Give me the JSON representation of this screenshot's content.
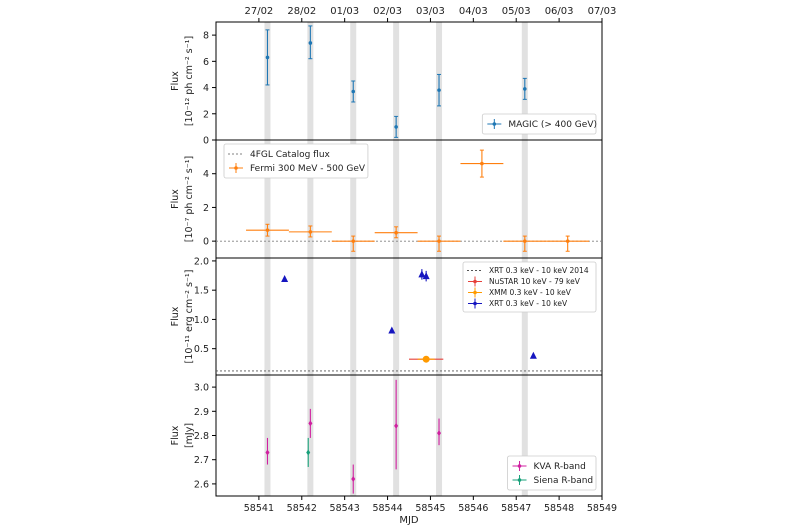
{
  "chart_data": {
    "type": "scatter",
    "xlabel": "MJD",
    "xlim": [
      58540,
      58549
    ],
    "x_ticks": [
      "58541",
      "58542",
      "58543",
      "58544",
      "58545",
      "58546",
      "58547",
      "58548",
      "58549"
    ],
    "top_axis_ticks": [
      "27/02",
      "28/02",
      "01/03",
      "02/03",
      "03/03",
      "04/03",
      "05/03",
      "06/03",
      "07/03"
    ],
    "observation_bands_x": [
      58541.2,
      58542.2,
      58543.2,
      58544.2,
      58545.2,
      58547.2
    ],
    "colors": {
      "magic": "#1f77b4",
      "fermi": "#ff7f0e",
      "fermi_catalog": "#808080",
      "xrt2014": "#555555",
      "nustar": "#e6403a",
      "xmm": "#ff9a00",
      "xrt": "#1616c0",
      "kva": "#d020a0",
      "siena": "#17a07a",
      "band": "#dcdcdc"
    },
    "panels": [
      {
        "id": "magic",
        "ylabel_line1": "Flux",
        "ylabel_line2": "[10⁻¹² ph cm⁻² s⁻¹]",
        "ylim": [
          0,
          9
        ],
        "y_ticks": [
          "0",
          "2",
          "4",
          "6",
          "8"
        ],
        "legend_position": "lower-right",
        "series": [
          {
            "name": "MAGIC (> 400 GeV)",
            "marker": "errorbar",
            "color_key": "magic",
            "points": [
              {
                "x": 58541.2,
                "y": 6.3,
                "ylo": 4.2,
                "yhi": 8.4
              },
              {
                "x": 58542.2,
                "y": 7.4,
                "ylo": 6.2,
                "yhi": 8.7
              },
              {
                "x": 58543.2,
                "y": 3.7,
                "ylo": 2.9,
                "yhi": 4.5
              },
              {
                "x": 58544.2,
                "y": 1.0,
                "ylo": 0.2,
                "yhi": 1.8
              },
              {
                "x": 58545.2,
                "y": 3.8,
                "ylo": 2.6,
                "yhi": 5.0
              },
              {
                "x": 58547.2,
                "y": 3.9,
                "ylo": 3.1,
                "yhi": 4.7
              }
            ]
          }
        ]
      },
      {
        "id": "fermi",
        "ylabel_line1": "Flux",
        "ylabel_line2": "[10⁻⁷ ph cm⁻² s⁻¹]",
        "ylim": [
          -1,
          6
        ],
        "y_ticks": [
          "0",
          "2",
          "4"
        ],
        "legend_position": "upper-left",
        "reference_line": {
          "name": "4FGL Catalog flux",
          "y": 0,
          "color_key": "fermi_catalog"
        },
        "series": [
          {
            "name": "Fermi 300 MeV - 500 GeV",
            "marker": "errorbar-x",
            "color_key": "fermi",
            "points": [
              {
                "x": 58541.2,
                "y": 0.65,
                "ylo": 0.3,
                "yhi": 1.0,
                "xlo": 58540.7,
                "xhi": 58541.7
              },
              {
                "x": 58542.2,
                "y": 0.55,
                "ylo": 0.25,
                "yhi": 0.9,
                "xlo": 58541.7,
                "xhi": 58542.7
              },
              {
                "x": 58543.2,
                "y": 0.0,
                "ylo": -0.6,
                "yhi": 0.3,
                "xlo": 58542.7,
                "xhi": 58543.7
              },
              {
                "x": 58544.2,
                "y": 0.5,
                "ylo": 0.2,
                "yhi": 0.85,
                "xlo": 58543.7,
                "xhi": 58544.7
              },
              {
                "x": 58545.2,
                "y": 0.0,
                "ylo": -0.6,
                "yhi": 0.3,
                "xlo": 58544.7,
                "xhi": 58545.7
              },
              {
                "x": 58546.2,
                "y": 4.6,
                "ylo": 3.8,
                "yhi": 5.4,
                "xlo": 58545.7,
                "xhi": 58546.7
              },
              {
                "x": 58547.2,
                "y": 0.0,
                "ylo": -0.6,
                "yhi": 0.3,
                "xlo": 58546.7,
                "xhi": 58547.7
              },
              {
                "x": 58548.2,
                "y": 0.0,
                "ylo": -0.6,
                "yhi": 0.3,
                "xlo": 58547.7,
                "xhi": 58548.7
              }
            ]
          }
        ]
      },
      {
        "id": "xray",
        "ylabel_line1": "Flux",
        "ylabel_line2": "[10⁻¹¹ erg cm⁻² s⁻¹]",
        "ylim": [
          0.05,
          2.05
        ],
        "y_ticks": [
          "0.5",
          "1.0",
          "1.5",
          "2.0"
        ],
        "legend_position": "upper-right",
        "reference_line": {
          "name": "XRT 0.3 keV - 10 keV 2014",
          "y": 0.12,
          "color_key": "xrt2014"
        },
        "series": [
          {
            "name": "NuSTAR 10 keV - 79 keV",
            "marker": "errorbar-x",
            "color_key": "nustar",
            "points": [
              {
                "x": 58544.9,
                "y": 0.32,
                "ylo": 0.31,
                "yhi": 0.33,
                "xlo": 58544.5,
                "xhi": 58545.3
              }
            ]
          },
          {
            "name": "XMM 0.3 keV - 10 keV",
            "marker": "circle",
            "color_key": "xmm",
            "points": [
              {
                "x": 58544.9,
                "y": 0.32,
                "ylo": 0.31,
                "yhi": 0.33,
                "xlo": 58544.7,
                "xhi": 58545.1
              }
            ]
          },
          {
            "name": "XRT 0.3 keV - 10 keV",
            "marker": "triangle",
            "color_key": "xrt",
            "points": [
              {
                "x": 58541.6,
                "y": 1.69,
                "ylo": 1.65,
                "yhi": 1.73
              },
              {
                "x": 58544.1,
                "y": 0.81,
                "ylo": 0.77,
                "yhi": 0.85
              },
              {
                "x": 58544.8,
                "y": 1.77,
                "ylo": 1.68,
                "yhi": 1.86
              },
              {
                "x": 58544.9,
                "y": 1.74,
                "ylo": 1.65,
                "yhi": 1.83
              },
              {
                "x": 58547.4,
                "y": 0.38,
                "ylo": 0.37,
                "yhi": 0.39
              }
            ]
          }
        ]
      },
      {
        "id": "optical",
        "ylabel_line1": "Flux",
        "ylabel_line2": "[mJy]",
        "ylim": [
          2.55,
          3.05
        ],
        "y_ticks": [
          "2.6",
          "2.7",
          "2.8",
          "2.9",
          "3.0"
        ],
        "legend_position": "lower-right",
        "series": [
          {
            "name": "KVA R-band",
            "marker": "diamond",
            "color_key": "kva",
            "points": [
              {
                "x": 58541.2,
                "y": 2.73,
                "ylo": 2.68,
                "yhi": 2.79
              },
              {
                "x": 58542.2,
                "y": 2.85,
                "ylo": 2.79,
                "yhi": 2.91
              },
              {
                "x": 58543.2,
                "y": 2.62,
                "ylo": 2.56,
                "yhi": 2.68
              },
              {
                "x": 58544.2,
                "y": 2.84,
                "ylo": 2.66,
                "yhi": 3.03
              },
              {
                "x": 58545.2,
                "y": 2.81,
                "ylo": 2.76,
                "yhi": 2.87
              }
            ]
          },
          {
            "name": "Siena R-band",
            "marker": "diamond",
            "color_key": "siena",
            "points": [
              {
                "x": 58542.15,
                "y": 2.73,
                "ylo": 2.67,
                "yhi": 2.79
              }
            ]
          }
        ]
      }
    ]
  }
}
